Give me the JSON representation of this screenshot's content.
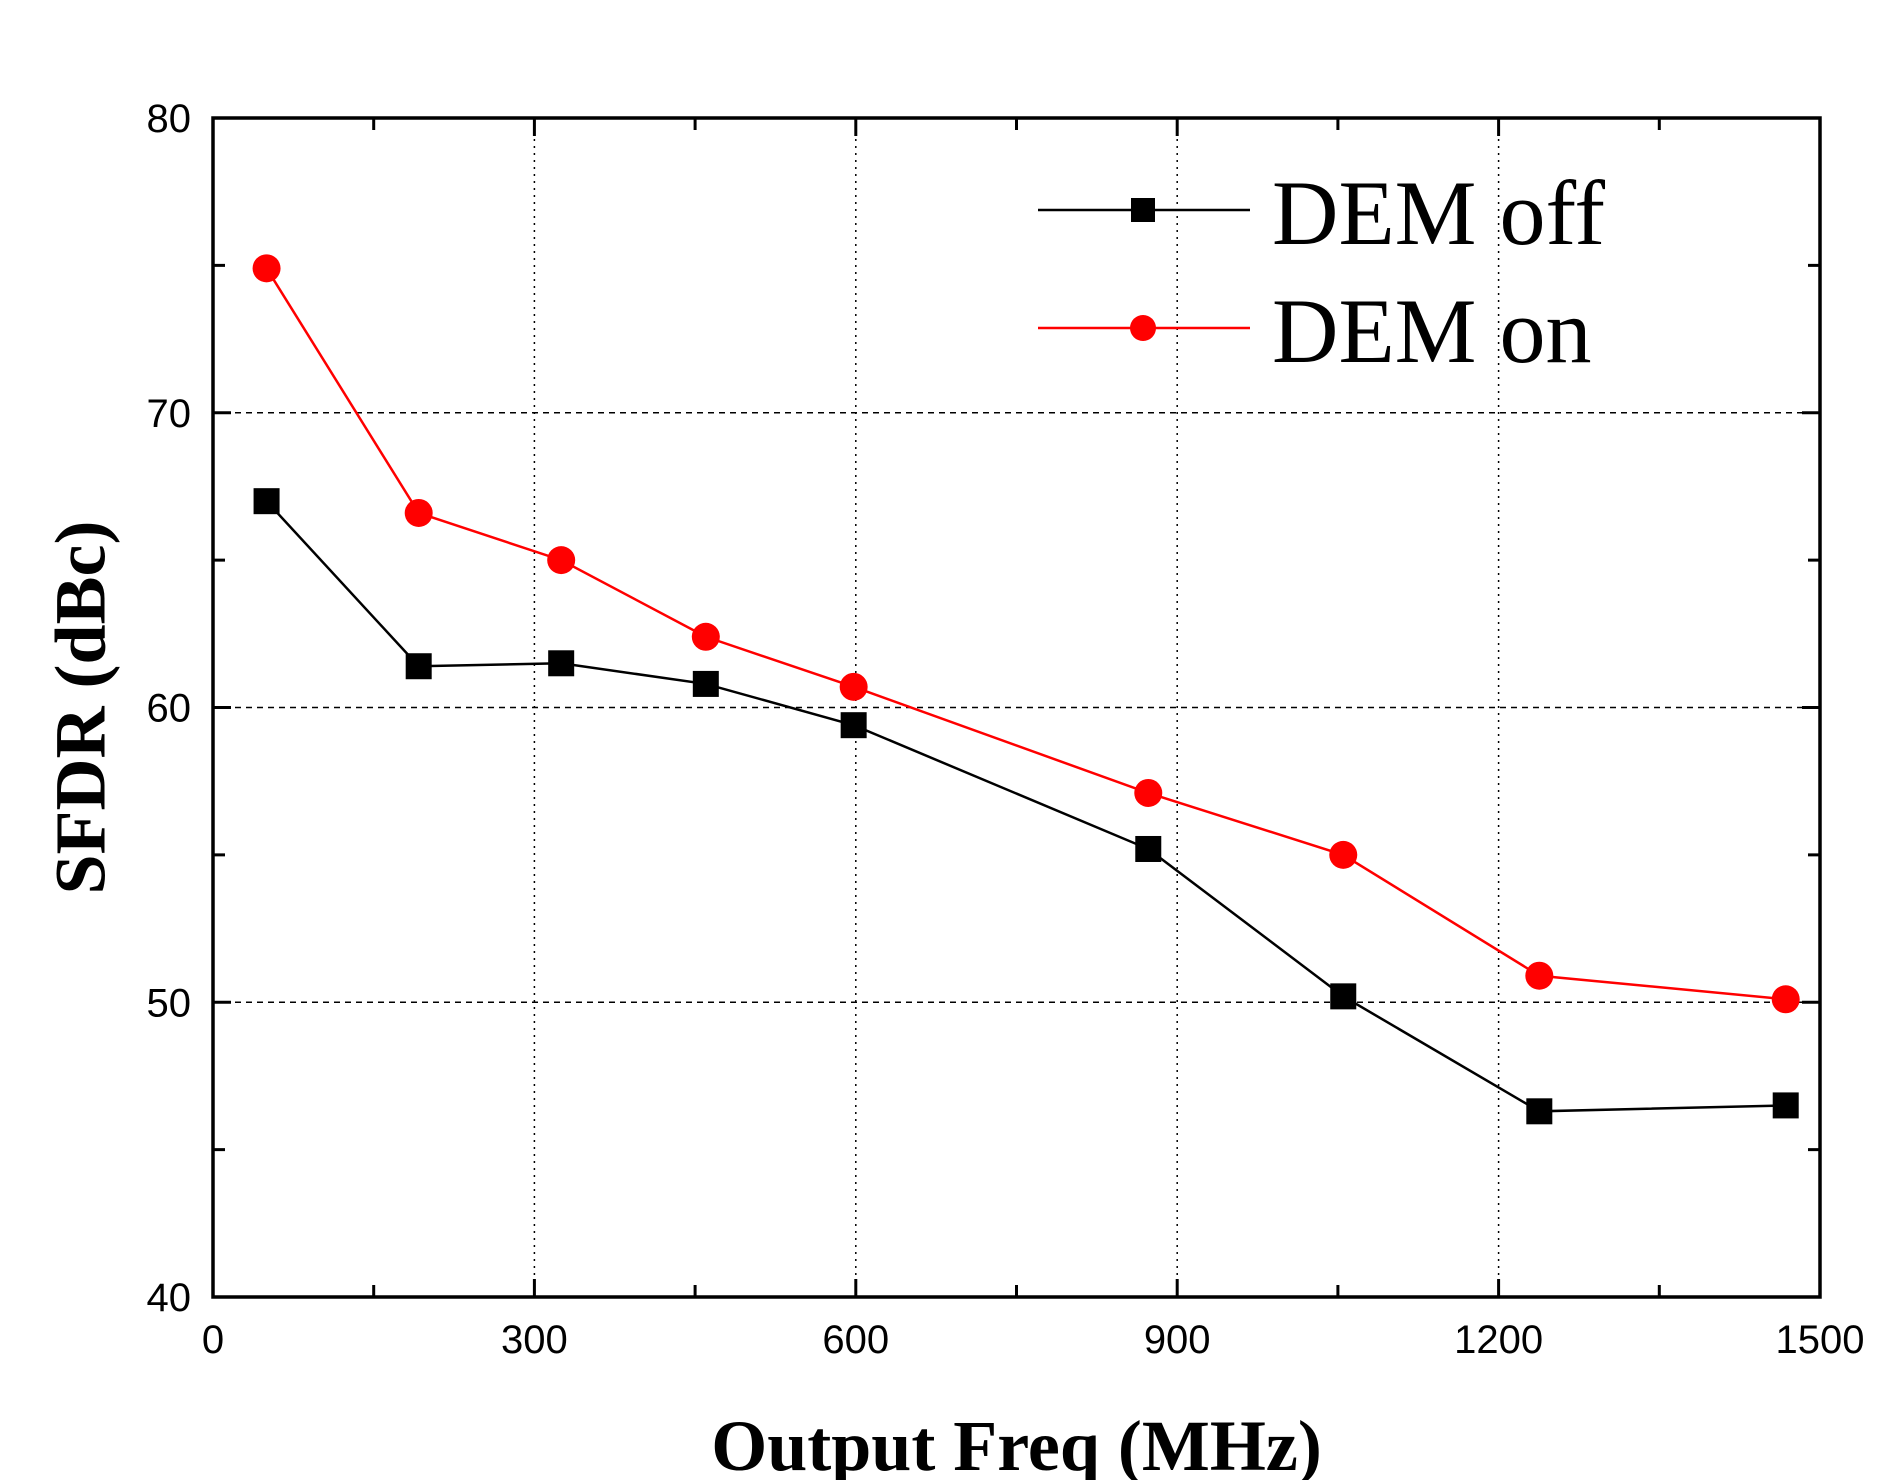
{
  "chart_data": {
    "type": "line",
    "title": "",
    "xlabel": "Output Freq (MHz)",
    "ylabel": "SFDR (dBc)",
    "xlim": [
      0,
      1500
    ],
    "ylim": [
      40,
      80
    ],
    "xticks": [
      0,
      300,
      600,
      900,
      1200,
      1500
    ],
    "xtick_labels": [
      "0",
      "300",
      "600",
      "900",
      "1200",
      "1500"
    ],
    "yticks": [
      40,
      50,
      60,
      70,
      80
    ],
    "ytick_labels": [
      "40",
      "50",
      "60",
      "70",
      "80"
    ],
    "grid": true,
    "legend_position": "top-right",
    "series": [
      {
        "name": "DEM off",
        "color": "#000000",
        "marker": "square",
        "x": [
          50,
          192,
          325,
          460,
          598,
          873,
          1055,
          1238,
          1468
        ],
        "y": [
          67.0,
          61.4,
          61.5,
          60.8,
          59.4,
          55.2,
          50.2,
          46.3,
          46.5
        ]
      },
      {
        "name": "DEM on",
        "color": "#ff0000",
        "marker": "circle",
        "x": [
          50,
          192,
          325,
          460,
          598,
          873,
          1055,
          1238,
          1468
        ],
        "y": [
          74.9,
          66.6,
          65.0,
          62.4,
          60.7,
          57.1,
          55.0,
          50.9,
          50.1
        ]
      }
    ]
  }
}
